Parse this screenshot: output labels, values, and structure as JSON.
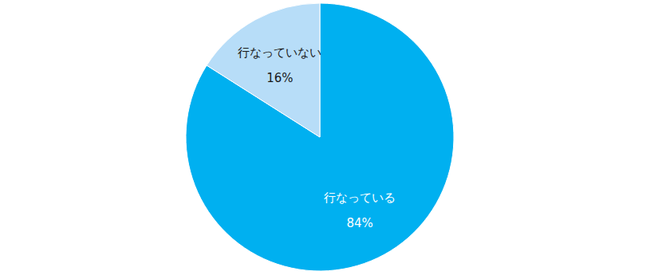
{
  "chart_data": {
    "type": "pie",
    "categories": [
      "行なっている",
      "行なっていない"
    ],
    "values": [
      84,
      16
    ],
    "value_labels": [
      "84%",
      "16%"
    ],
    "colors": [
      "#00b0f0",
      "#b7ddf8"
    ],
    "data_labels": true
  }
}
